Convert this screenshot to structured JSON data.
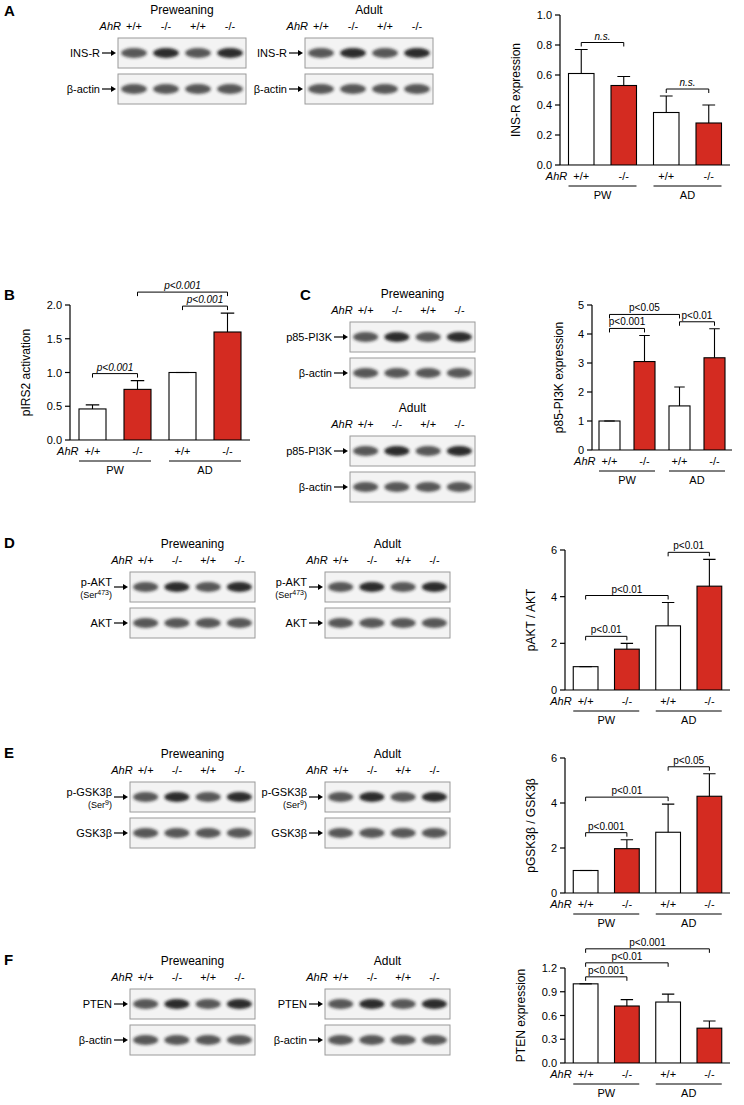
{
  "chart_data": [
    {
      "type": "bar",
      "y_label": "INS-R expression",
      "x_label": "AhR",
      "categories": [
        "+/+",
        "-/-",
        "+/+",
        "-/-"
      ],
      "groups": [
        "PW",
        "AD"
      ],
      "values": [
        0.61,
        0.53,
        0.35,
        0.28
      ],
      "errors": [
        0.16,
        0.06,
        0.11,
        0.12
      ],
      "colors": [
        "#ffffff",
        "#d42b21",
        "#ffffff",
        "#d42b21"
      ],
      "ylim": [
        0,
        1
      ],
      "yticks": [
        {
          "value": 0,
          "label": "0.0"
        },
        0.2,
        0.4,
        0.6,
        0.8,
        {
          "value": 1,
          "label": "1.0"
        }
      ],
      "annotations": [
        {
          "text": "n.s.",
          "from": 0,
          "to": 1
        },
        {
          "text": "n.s.",
          "from": 2,
          "to": 3
        }
      ]
    },
    {
      "type": "bar",
      "y_label": "pIRS2 activation",
      "x_label": "AhR",
      "categories": [
        "+/+",
        "-/-",
        "+/+",
        "-/-"
      ],
      "groups": [
        "PW",
        "AD"
      ],
      "values": [
        0.46,
        0.75,
        1.0,
        1.6
      ],
      "errors": [
        0.06,
        0.13,
        0,
        0.28
      ],
      "colors": [
        "#ffffff",
        "#d42b21",
        "#ffffff",
        "#d42b21"
      ],
      "ylim": [
        0,
        2
      ],
      "yticks": [
        {
          "value": 0,
          "label": "0.0"
        },
        0.5,
        {
          "value": 1,
          "label": "1.0"
        },
        1.5,
        {
          "value": 2,
          "label": "2.0"
        }
      ],
      "annotations": [
        {
          "text": "p<0.001",
          "from": 0,
          "to": 1
        },
        {
          "text": "p<0.001",
          "from": 1,
          "to": 3
        },
        {
          "text": "p<0.001",
          "from": 2,
          "to": 3
        }
      ]
    },
    {
      "type": "bar",
      "y_label": "p85-PI3K expression",
      "x_label": "AhR",
      "categories": [
        "+/+",
        "-/-",
        "+/+",
        "-/-"
      ],
      "groups": [
        "PW",
        "AD"
      ],
      "values": [
        1.0,
        3.05,
        1.52,
        3.18
      ],
      "errors": [
        0,
        0.9,
        0.65,
        1.0
      ],
      "colors": [
        "#ffffff",
        "#d42b21",
        "#ffffff",
        "#d42b21"
      ],
      "ylim": [
        0,
        5
      ],
      "yticks": [
        0,
        1,
        2,
        3,
        4,
        5
      ],
      "annotations": [
        {
          "text": "p<0.001",
          "from": 0,
          "to": 1
        },
        {
          "text": "p<0.05",
          "from": 0,
          "to": 2
        },
        {
          "text": "p<0.01",
          "from": 2,
          "to": 3
        }
      ]
    },
    {
      "type": "bar",
      "y_label": "pAKT / AKT",
      "x_label": "AhR",
      "categories": [
        "+/+",
        "-/-",
        "+/+",
        "-/-"
      ],
      "groups": [
        "PW",
        "AD"
      ],
      "values": [
        1.0,
        1.75,
        2.75,
        4.45
      ],
      "errors": [
        0,
        0.25,
        1.0,
        1.15
      ],
      "colors": [
        "#ffffff",
        "#d42b21",
        "#ffffff",
        "#d42b21"
      ],
      "ylim": [
        0,
        6
      ],
      "yticks": [
        0,
        2,
        4,
        6
      ],
      "annotations": [
        {
          "text": "p<0.01",
          "from": 0,
          "to": 1
        },
        {
          "text": "p<0.01",
          "from": 0,
          "to": 2
        },
        {
          "text": "p<0.01",
          "from": 2,
          "to": 3
        }
      ]
    },
    {
      "type": "bar",
      "y_label": "pGSK3β / GSK3β",
      "x_label": "AhR",
      "categories": [
        "+/+",
        "-/-",
        "+/+",
        "-/-"
      ],
      "groups": [
        "PW",
        "AD"
      ],
      "values": [
        1.0,
        1.97,
        2.7,
        4.3
      ],
      "errors": [
        0,
        0.4,
        1.25,
        1.0
      ],
      "colors": [
        "#ffffff",
        "#d42b21",
        "#ffffff",
        "#d42b21"
      ],
      "ylim": [
        0,
        6
      ],
      "yticks": [
        0,
        2,
        4,
        6
      ],
      "annotations": [
        {
          "text": "p<0.001",
          "from": 0,
          "to": 1
        },
        {
          "text": "p<0.01",
          "from": 0,
          "to": 2
        },
        {
          "text": "p<0.05",
          "from": 2,
          "to": 3
        }
      ]
    },
    {
      "type": "bar",
      "y_label": "PTEN expression",
      "x_label": "AhR",
      "categories": [
        "+/+",
        "-/-",
        "+/+",
        "-/-"
      ],
      "groups": [
        "PW",
        "AD"
      ],
      "values": [
        1.0,
        0.72,
        0.77,
        0.44
      ],
      "errors": [
        0,
        0.08,
        0.1,
        0.09
      ],
      "colors": [
        "#ffffff",
        "#d42b21",
        "#ffffff",
        "#d42b21"
      ],
      "ylim": [
        0,
        1.2
      ],
      "yticks": [
        {
          "value": 0,
          "label": "0.0"
        },
        0.3,
        0.6,
        0.9,
        1.2
      ],
      "annotations": [
        {
          "text": "p<0.001",
          "from": 0,
          "to": 1
        },
        {
          "text": "p<0.01",
          "from": 0,
          "to": 2
        },
        {
          "text": "p<0.001",
          "from": 0,
          "to": 3
        }
      ]
    }
  ],
  "panel_letters": [
    "A",
    "B",
    "C",
    "D",
    "E",
    "F"
  ],
  "blots": [
    [
      {
        "title": "Preweaning",
        "genotype_label": "AhR",
        "lanes": [
          "+/+",
          "-/-",
          "+/+",
          "-/-"
        ],
        "bands": [
          {
            "label": "INS-R"
          },
          {
            "label": "β-actin"
          }
        ]
      },
      {
        "title": "Adult",
        "genotype_label": "AhR",
        "lanes": [
          "+/+",
          "-/-",
          "+/+",
          "-/-"
        ],
        "bands": [
          {
            "label": "INS-R"
          },
          {
            "label": "β-actin"
          }
        ]
      }
    ],
    [],
    [
      {
        "title": "Preweaning",
        "genotype_label": "AhR",
        "lanes": [
          "+/+",
          "-/-",
          "+/+",
          "-/-"
        ],
        "bands": [
          {
            "label": "p85-PI3K"
          },
          {
            "label": "β-actin"
          }
        ]
      },
      {
        "title": "Adult",
        "genotype_label": "AhR",
        "lanes": [
          "+/+",
          "-/-",
          "+/+",
          "-/-"
        ],
        "bands": [
          {
            "label": "p85-PI3K"
          },
          {
            "label": "β-actin"
          }
        ]
      }
    ],
    [
      {
        "title": "Preweaning",
        "genotype_label": "AhR",
        "lanes": [
          "+/+",
          "-/-",
          "+/+",
          "-/-"
        ],
        "bands": [
          {
            "label": "p-AKT",
            "sublabel": "(Ser473)"
          },
          {
            "label": "AKT"
          }
        ]
      },
      {
        "title": "Adult",
        "genotype_label": "AhR",
        "lanes": [
          "+/+",
          "-/-",
          "+/+",
          "-/-"
        ],
        "bands": [
          {
            "label": "p-AKT",
            "sublabel": "(Ser473)"
          },
          {
            "label": "AKT"
          }
        ]
      }
    ],
    [
      {
        "title": "Preweaning",
        "genotype_label": "AhR",
        "lanes": [
          "+/+",
          "-/-",
          "+/+",
          "-/-"
        ],
        "bands": [
          {
            "label": "p-GSK3β",
            "sublabel": "(Ser9)"
          },
          {
            "label": "GSK3β"
          }
        ]
      },
      {
        "title": "Adult",
        "genotype_label": "AhR",
        "lanes": [
          "+/+",
          "-/-",
          "+/+",
          "-/-"
        ],
        "bands": [
          {
            "label": "p-GSK3β",
            "sublabel": "(Ser9)"
          },
          {
            "label": "GSK3β"
          }
        ]
      }
    ],
    [
      {
        "title": "Preweaning",
        "genotype_label": "AhR",
        "lanes": [
          "+/+",
          "-/-",
          "+/+",
          "-/-"
        ],
        "bands": [
          {
            "label": "PTEN"
          },
          {
            "label": "β-actin"
          }
        ]
      },
      {
        "title": "Adult",
        "genotype_label": "AhR",
        "lanes": [
          "+/+",
          "-/-",
          "+/+",
          "-/-"
        ],
        "bands": [
          {
            "label": "PTEN"
          },
          {
            "label": "β-actin"
          }
        ]
      }
    ]
  ]
}
